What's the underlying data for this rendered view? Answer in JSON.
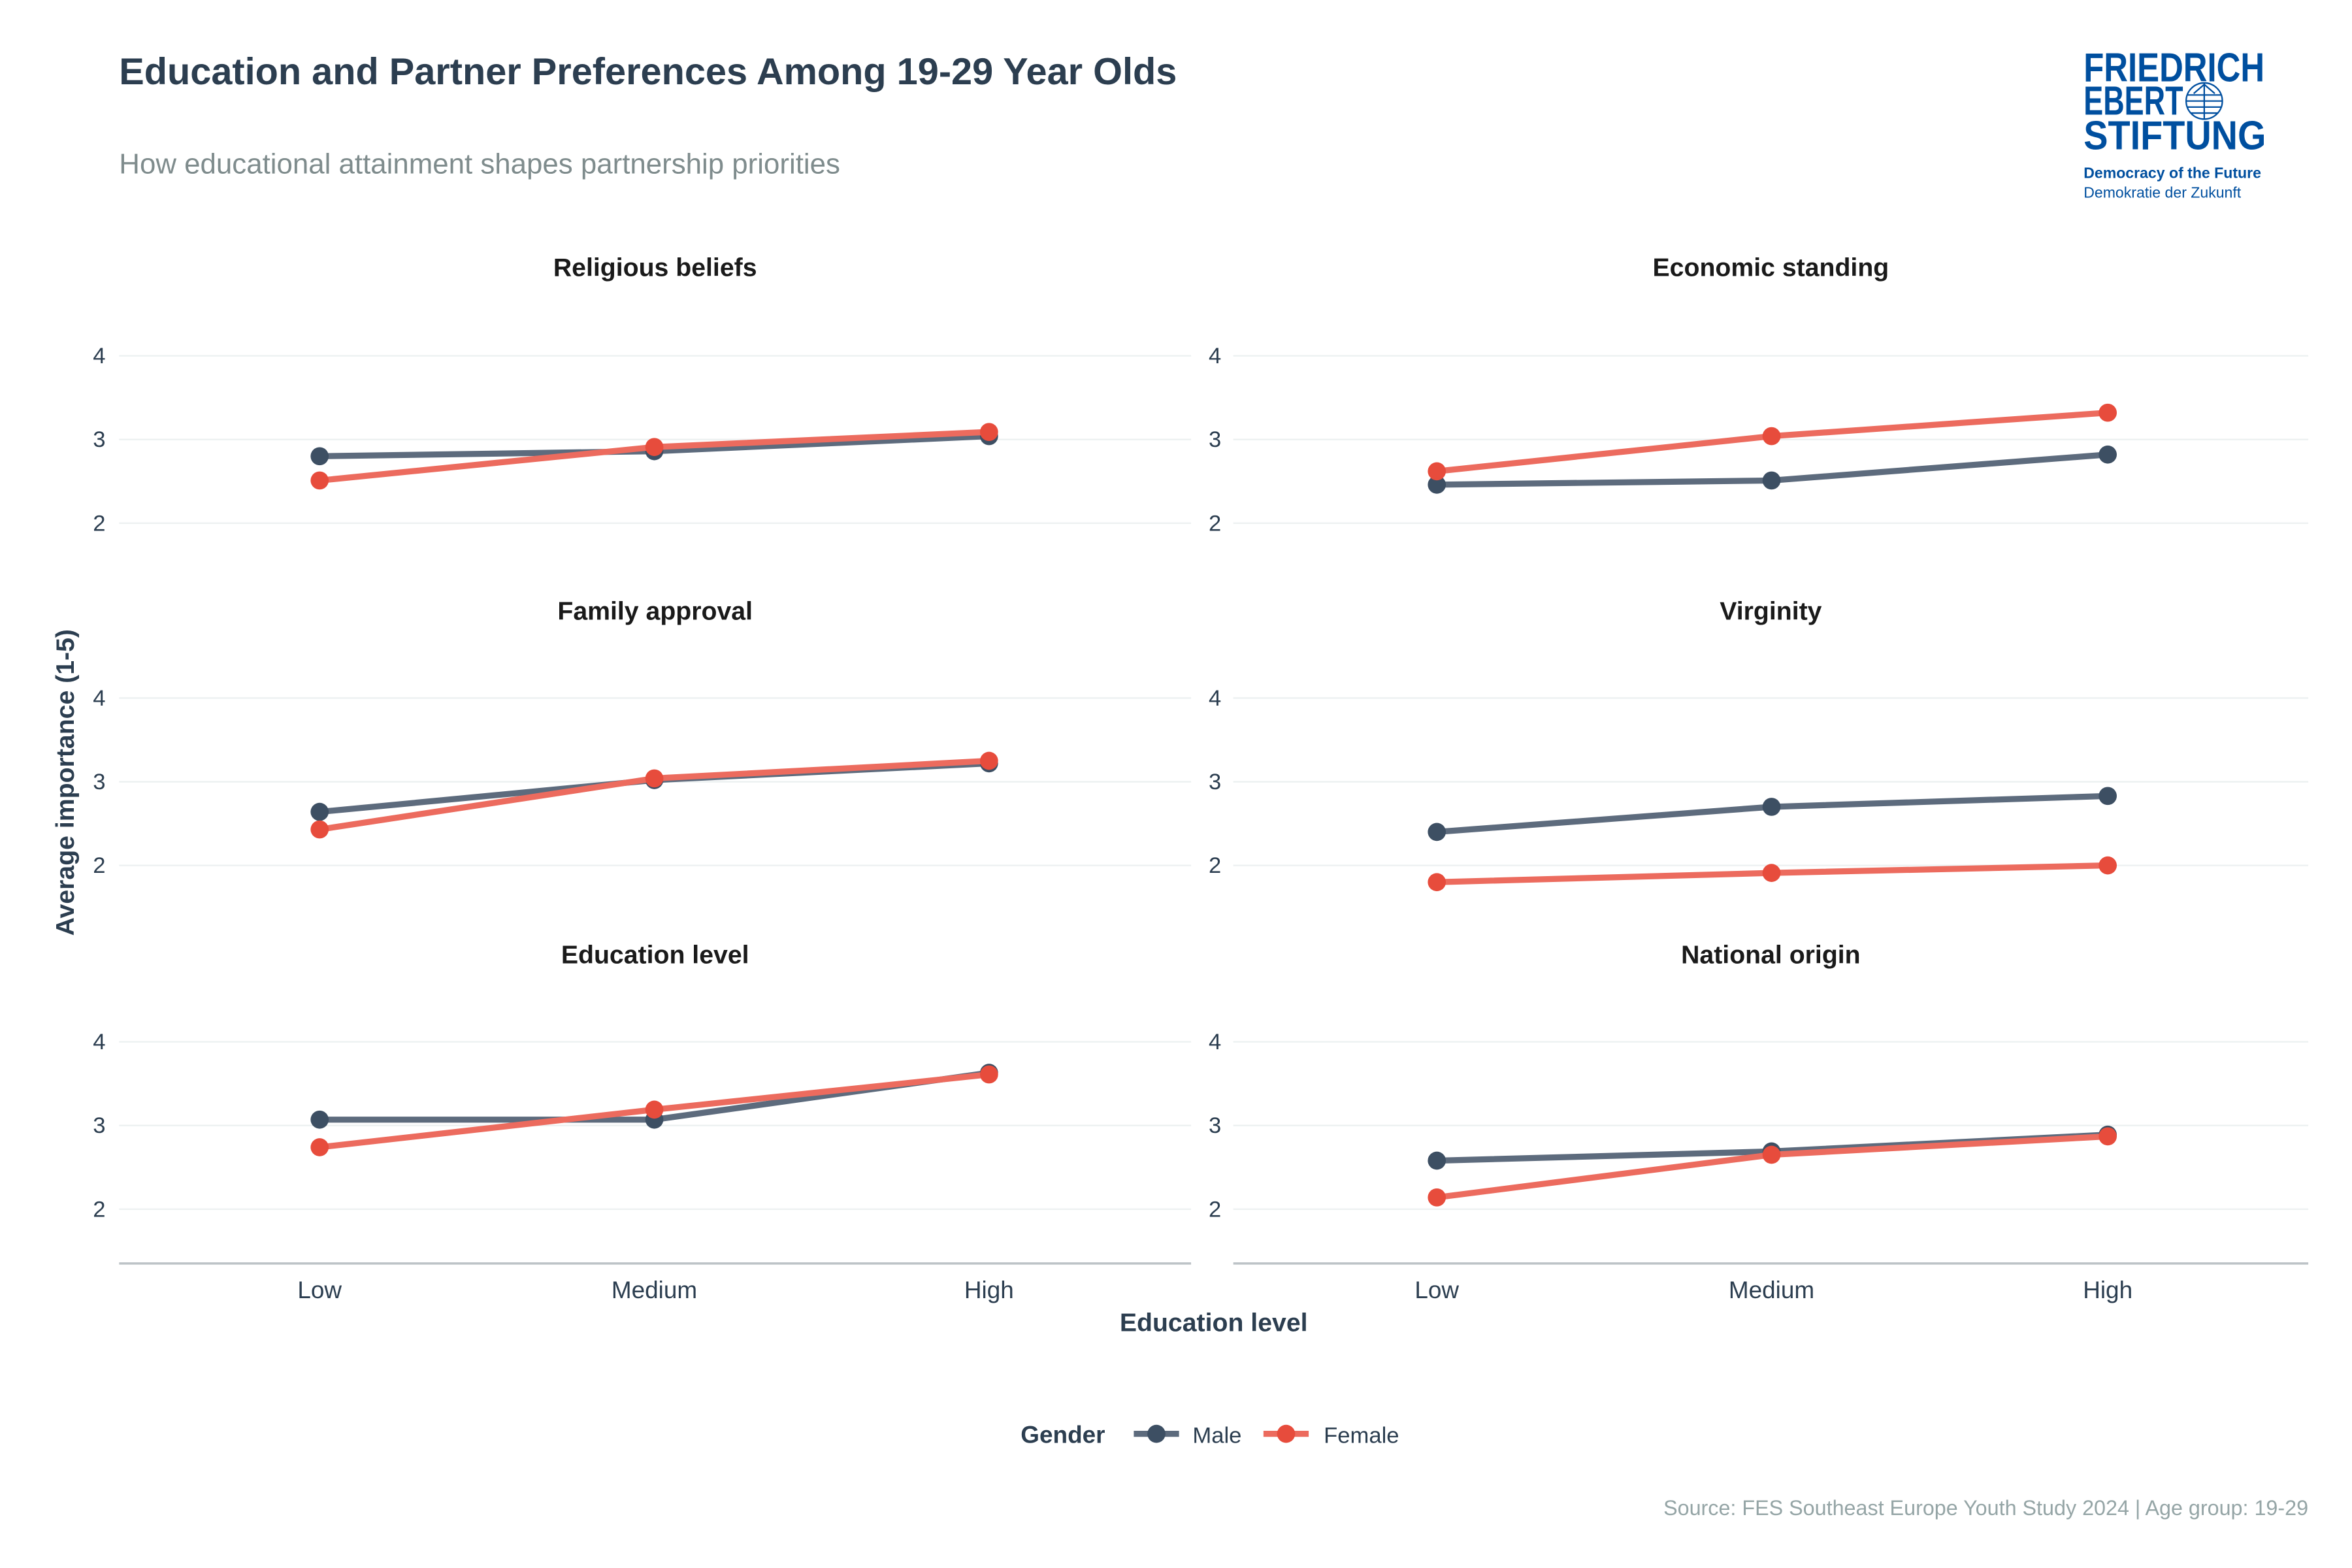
{
  "title": "Education and Partner Preferences Among 19-29 Year Olds",
  "subtitle": "How educational attainment shapes partnership priorities",
  "caption": "Source: FES Southeast Europe Youth Study 2024 | Age group: 19-29",
  "logo": {
    "lines": [
      "FRIEDRICH",
      "EBERT",
      "STIFTUNG"
    ],
    "tagline_en": "Democracy of the Future",
    "tagline_de": "Demokratie der Zukunft",
    "color": "#004f9f"
  },
  "chart_data": {
    "type": "line",
    "xlabel": "Education level",
    "ylabel": "Average importance (1-5)",
    "categories": [
      "Low",
      "Medium",
      "High"
    ],
    "yticks": [
      2,
      3,
      4
    ],
    "grid": true,
    "legend": {
      "title": "Gender",
      "placement": "bottom",
      "entries": [
        "Male",
        "Female"
      ]
    },
    "colors": {
      "Male": "#3d4f63",
      "Female": "#e74c3c"
    },
    "panels": [
      {
        "title": "Religious beliefs",
        "series": [
          {
            "name": "Male",
            "values": [
              2.8,
              2.86,
              3.04
            ]
          },
          {
            "name": "Female",
            "values": [
              2.51,
              2.91,
              3.09
            ]
          }
        ]
      },
      {
        "title": "Economic standing",
        "series": [
          {
            "name": "Male",
            "values": [
              2.46,
              2.51,
              2.82
            ]
          },
          {
            "name": "Female",
            "values": [
              2.62,
              3.04,
              3.32
            ]
          }
        ]
      },
      {
        "title": "Family approval",
        "series": [
          {
            "name": "Male",
            "values": [
              2.64,
              3.02,
              3.22
            ]
          },
          {
            "name": "Female",
            "values": [
              2.43,
              3.04,
              3.25
            ]
          }
        ]
      },
      {
        "title": "Virginity",
        "series": [
          {
            "name": "Male",
            "values": [
              2.4,
              2.7,
              2.83
            ]
          },
          {
            "name": "Female",
            "values": [
              1.8,
              1.91,
              2.0
            ]
          }
        ]
      },
      {
        "title": "Education level",
        "series": [
          {
            "name": "Male",
            "values": [
              3.07,
              3.07,
              3.63
            ]
          },
          {
            "name": "Female",
            "values": [
              2.74,
              3.19,
              3.61
            ]
          }
        ]
      },
      {
        "title": "National origin",
        "series": [
          {
            "name": "Male",
            "values": [
              2.58,
              2.69,
              2.89
            ]
          },
          {
            "name": "Female",
            "values": [
              2.14,
              2.65,
              2.87
            ]
          }
        ]
      }
    ]
  }
}
